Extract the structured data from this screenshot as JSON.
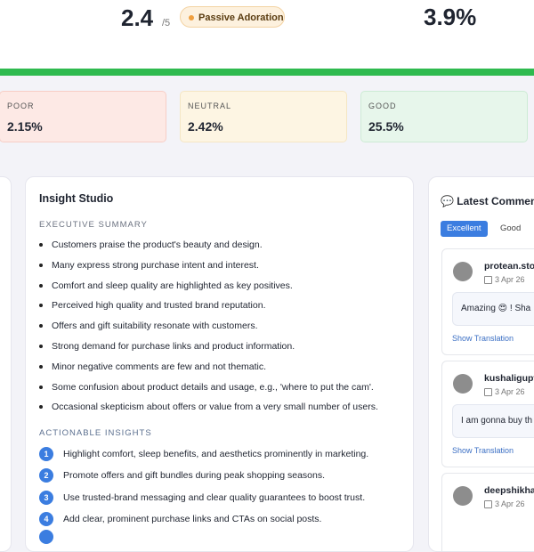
{
  "header": {
    "score": "2.4",
    "score_max": "/5",
    "badge": "Passive Adoration",
    "rate": "3.9%"
  },
  "buckets": [
    {
      "label": "POOR",
      "value": "2.15%"
    },
    {
      "label": "NEUTRAL",
      "value": "2.42%"
    },
    {
      "label": "GOOD",
      "value": "25.5%"
    }
  ],
  "insight": {
    "title": "Insight Studio",
    "summary_heading": "EXECUTIVE SUMMARY",
    "summary": [
      "Customers praise the product's beauty and design.",
      "Many express strong purchase intent and interest.",
      "Comfort and sleep quality are highlighted as key positives.",
      "Perceived high quality and trusted brand reputation.",
      "Offers and gift suitability resonate with customers.",
      "Strong demand for purchase links and product information.",
      "Minor negative comments are few and not thematic.",
      "Some confusion about product details and usage, e.g., 'where to put the cam'.",
      "Occasional skepticism about offers or value from a very small number of users."
    ],
    "actions_heading": "ACTIONABLE INSIGHTS",
    "actions": [
      {
        "number": "1",
        "text": "Highlight comfort, sleep benefits, and aesthetics prominently in marketing."
      },
      {
        "number": "2",
        "text": "Promote offers and gift bundles during peak shopping seasons."
      },
      {
        "number": "3",
        "text": "Use trusted-brand messaging and clear quality guarantees to boost trust."
      },
      {
        "number": "4",
        "text": "Add clear, prominent purchase links and CTAs on social posts."
      }
    ]
  },
  "comments": {
    "title": "💬 Latest Comment",
    "tabs": [
      "Excellent",
      "Good"
    ],
    "items": [
      {
        "user": "protean.sto",
        "date": "3 Apr 26",
        "text": "Amazing 😍 ! Sha",
        "action": "Show Translation"
      },
      {
        "user": "kushaligupt",
        "date": "3 Apr 26",
        "text": "I am gonna buy th",
        "action": "Show Translation"
      },
      {
        "user": "deepshikha",
        "date": "3 Apr 26"
      }
    ]
  }
}
